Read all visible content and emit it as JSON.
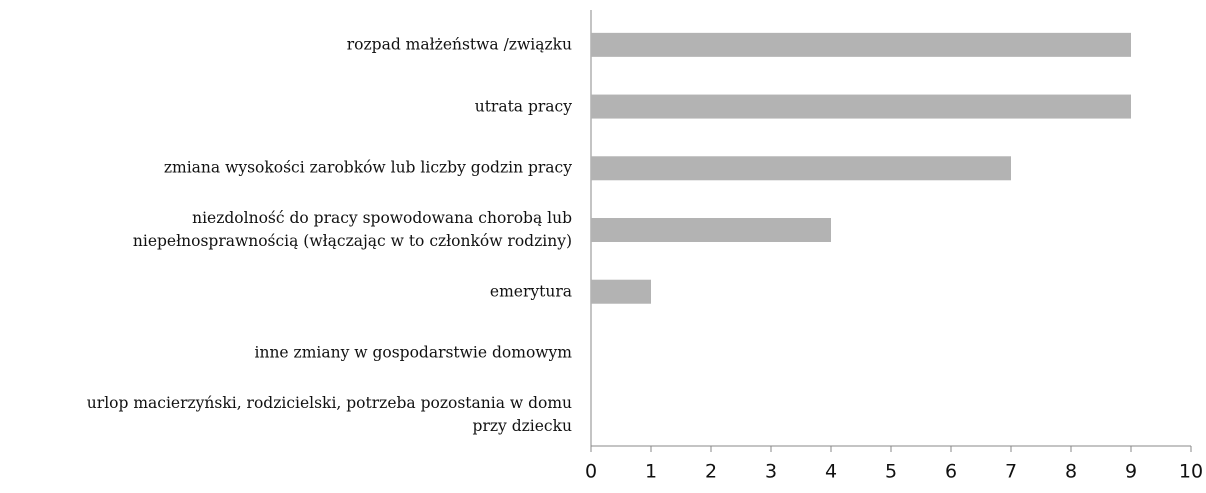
{
  "chart_data": {
    "type": "bar",
    "orientation": "horizontal",
    "categories": [
      "rozpad małżeństwa /związku",
      "utrata pracy",
      "zmiana wysokości zarobków lub liczby godzin pracy",
      "niezdolność do pracy spowodowana chorobą lub\nniepełnosprawnością (włączając w to członków rodziny)",
      "emerytura",
      "inne zmiany w gospodarstwie domowym",
      "urlop macierzyński, rodzicielski, potrzeba pozostania w domu\nprzy dziecku"
    ],
    "values": [
      9,
      9,
      7,
      4,
      1,
      0,
      0
    ],
    "color": "#b3b3b3",
    "xlim": [
      0,
      10
    ],
    "xticks": [
      0,
      1,
      2,
      3,
      4,
      5,
      6,
      7,
      8,
      9,
      10
    ],
    "grid": false
  }
}
